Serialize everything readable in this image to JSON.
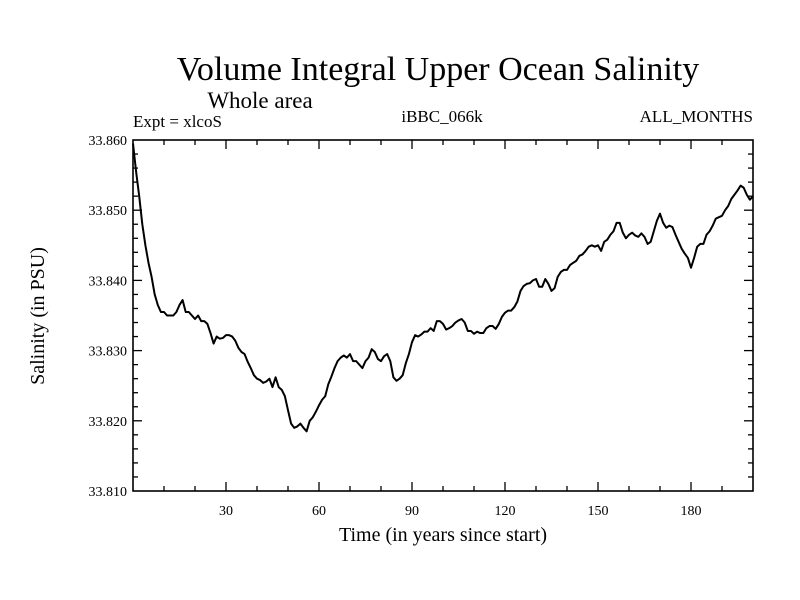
{
  "chart_data": {
    "type": "line",
    "title": "Volume Integral Upper Ocean Salinity",
    "subtitle": "Whole area",
    "left_label": "Expt = xlcoS",
    "center_label": "iBBC_066k",
    "right_label": "ALL_MONTHS",
    "xlabel": "Time (in years since start)",
    "ylabel": "Salinity (in PSU)",
    "xlim": [
      0,
      200
    ],
    "ylim": [
      33.81,
      33.86
    ],
    "xticks": [
      30,
      60,
      90,
      120,
      150,
      180
    ],
    "yticks": [
      33.81,
      33.82,
      33.83,
      33.84,
      33.85,
      33.86
    ],
    "ytick_labels": [
      "33.810",
      "33.820",
      "33.830",
      "33.840",
      "33.850",
      "33.860"
    ],
    "series": [
      {
        "name": "salinity",
        "x": [
          0,
          1,
          2,
          3,
          4,
          5,
          6,
          7,
          8,
          9,
          10,
          11,
          12,
          13,
          14,
          15,
          16,
          17,
          18,
          19,
          20,
          21,
          22,
          23,
          24,
          25,
          26,
          27,
          28,
          29,
          30,
          31,
          32,
          33,
          34,
          35,
          36,
          37,
          38,
          39,
          40,
          41,
          42,
          43,
          44,
          45,
          46,
          47,
          48,
          49,
          50,
          51,
          52,
          53,
          54,
          55,
          56,
          57,
          58,
          59,
          60,
          61,
          62,
          63,
          64,
          65,
          66,
          67,
          68,
          69,
          70,
          71,
          72,
          73,
          74,
          75,
          76,
          77,
          78,
          79,
          80,
          81,
          82,
          83,
          84,
          85,
          86,
          87,
          88,
          89,
          90,
          91,
          92,
          93,
          94,
          95,
          96,
          97,
          98,
          99,
          100,
          101,
          102,
          103,
          104,
          105,
          106,
          107,
          108,
          109,
          110,
          111,
          112,
          113,
          114,
          115,
          116,
          117,
          118,
          119,
          120,
          121,
          122,
          123,
          124,
          125,
          126,
          127,
          128,
          129,
          130,
          131,
          132,
          133,
          134,
          135,
          136,
          137,
          138,
          139,
          140,
          141,
          142,
          143,
          144,
          145,
          146,
          147,
          148,
          149,
          150,
          151,
          152,
          153,
          154,
          155,
          156,
          157,
          158,
          159,
          160,
          161,
          162,
          163,
          164,
          165,
          166,
          167,
          168,
          169,
          170,
          171,
          172,
          173,
          174,
          175,
          176,
          177,
          178,
          179,
          180,
          181,
          182,
          183,
          184,
          185,
          186,
          187,
          188,
          189,
          190,
          191,
          192,
          193,
          194,
          195,
          196,
          197,
          198,
          199,
          200
        ],
        "values": [
          33.8595,
          33.8555,
          33.852,
          33.848,
          33.845,
          33.8425,
          33.8405,
          33.838,
          33.8365,
          33.8355,
          33.8355,
          33.835,
          33.835,
          33.835,
          33.8355,
          33.8365,
          33.8372,
          33.8355,
          33.8355,
          33.835,
          33.8345,
          33.835,
          33.8342,
          33.8342,
          33.8338,
          33.8325,
          33.831,
          33.832,
          33.8317,
          33.8318,
          33.8322,
          33.8322,
          33.832,
          33.8314,
          33.8304,
          33.8298,
          33.8295,
          33.8284,
          33.8275,
          33.8265,
          33.826,
          33.8258,
          33.8254,
          33.8256,
          33.826,
          33.8248,
          33.8262,
          33.8248,
          33.8244,
          33.8235,
          33.8215,
          33.8196,
          33.819,
          33.8192,
          33.8196,
          33.819,
          33.8185,
          33.82,
          33.8205,
          33.8213,
          33.8222,
          33.823,
          33.8235,
          33.8252,
          33.8263,
          33.8275,
          33.8285,
          33.829,
          33.8293,
          33.829,
          33.8295,
          33.8285,
          33.8285,
          33.828,
          33.8275,
          33.8285,
          33.829,
          33.8302,
          33.8298,
          33.8288,
          33.8285,
          33.8292,
          33.8295,
          33.8285,
          33.8262,
          33.8257,
          33.826,
          33.8265,
          33.8282,
          33.8295,
          33.8312,
          33.8322,
          33.832,
          33.8323,
          33.8327,
          33.8327,
          33.8332,
          33.8328,
          33.8342,
          33.8342,
          33.8338,
          33.833,
          33.8332,
          33.8335,
          33.834,
          33.8343,
          33.8345,
          33.834,
          33.8328,
          33.8328,
          33.8324,
          33.8327,
          33.8325,
          33.8325,
          33.8332,
          33.8335,
          33.8335,
          33.8331,
          33.8338,
          33.8348,
          33.8354,
          33.8357,
          33.8357,
          33.8362,
          33.837,
          33.8385,
          33.8392,
          33.8395,
          33.8396,
          33.84,
          33.8402,
          33.8391,
          33.8391,
          33.8402,
          33.8395,
          33.8385,
          33.8389,
          33.8405,
          33.8412,
          33.8415,
          33.8415,
          33.8422,
          33.8425,
          33.8428,
          33.8435,
          33.8437,
          33.8442,
          33.8448,
          33.845,
          33.8448,
          33.845,
          33.8442,
          33.8455,
          33.8458,
          33.8465,
          33.847,
          33.8482,
          33.8482,
          33.8468,
          33.846,
          33.8465,
          33.8468,
          33.8464,
          33.8462,
          33.8467,
          33.8462,
          33.8452,
          33.8455,
          33.847,
          33.8485,
          33.8495,
          33.8482,
          33.8475,
          33.8478,
          33.8476,
          33.8465,
          33.8455,
          33.8445,
          33.8438,
          33.8432,
          33.8418,
          33.8432,
          33.8448,
          33.8452,
          33.8452,
          33.8465,
          33.847,
          33.8478,
          33.8488,
          33.849,
          33.8492,
          33.85,
          33.8506,
          33.8516,
          33.8522,
          33.8528,
          33.8535,
          33.8532,
          33.8522,
          33.8515,
          33.852
        ]
      }
    ]
  }
}
